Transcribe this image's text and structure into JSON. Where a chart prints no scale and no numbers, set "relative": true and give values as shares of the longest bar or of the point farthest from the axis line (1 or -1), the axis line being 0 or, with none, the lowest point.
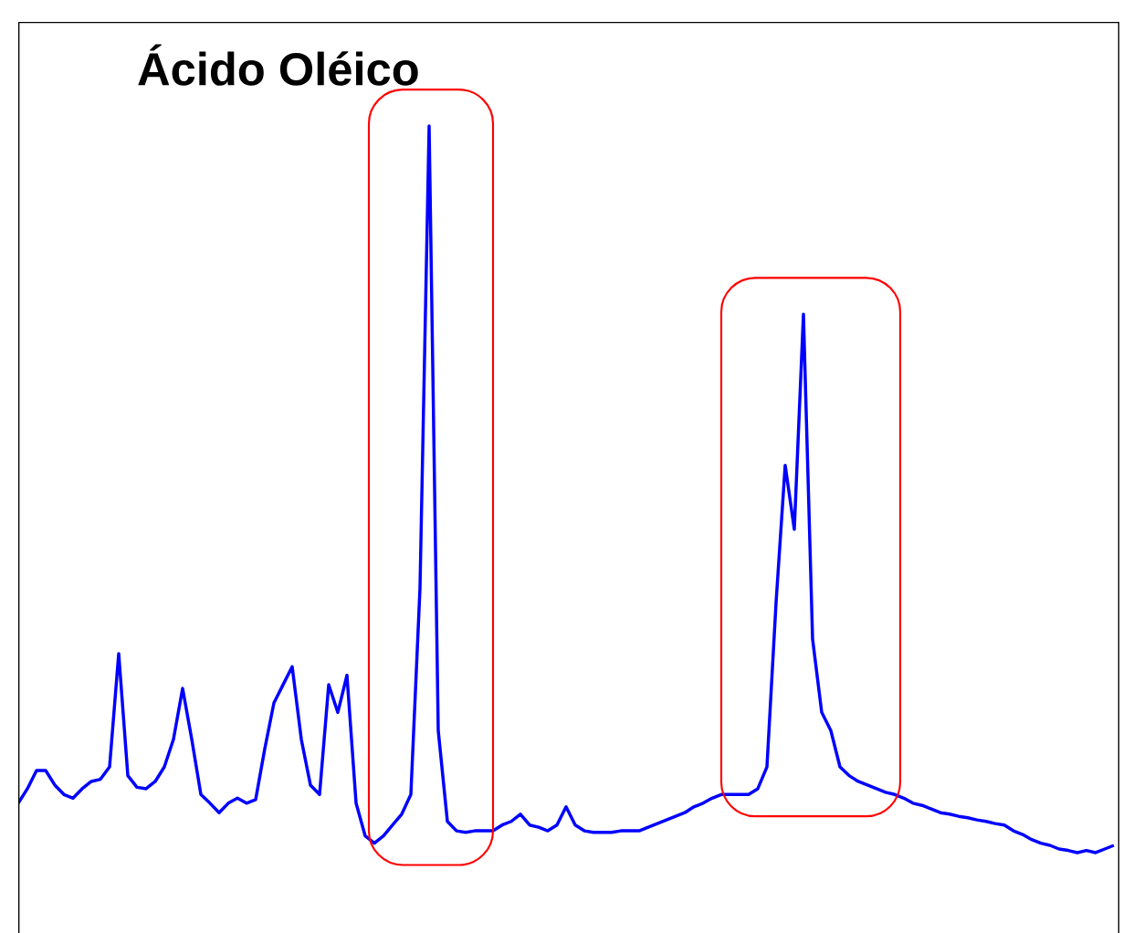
{
  "chart_data": {
    "type": "line",
    "title": "Ácido Oléico",
    "relative": true,
    "categories": [
      null,
      null,
      null,
      null,
      null,
      null,
      null,
      null,
      null,
      null,
      null,
      null,
      null,
      null,
      null,
      null,
      null,
      null,
      null,
      null,
      null,
      null,
      null,
      null,
      null,
      null,
      null,
      null,
      null,
      null,
      null,
      null,
      null,
      null,
      null,
      null,
      null,
      null,
      null,
      null,
      null,
      null,
      null,
      null,
      null,
      null,
      null,
      null,
      null,
      null,
      null,
      null,
      null,
      null,
      null,
      null,
      null,
      null,
      null,
      null,
      null,
      null,
      null,
      null,
      null,
      null,
      null,
      null,
      null,
      null,
      null,
      null,
      null,
      null,
      null,
      null,
      null,
      null,
      null,
      null,
      null,
      null,
      null,
      null,
      null,
      null,
      null,
      null,
      null,
      null,
      null,
      null,
      null,
      null,
      null,
      null,
      null,
      null,
      null,
      null,
      null,
      null,
      null,
      null,
      null,
      null,
      null,
      null,
      null,
      null,
      null,
      null,
      null,
      null,
      null,
      null,
      null,
      null,
      null,
      null,
      null
    ],
    "series": [
      {
        "color": "#0000ff",
        "values": [
          0.068,
          0.088,
          0.113,
          0.113,
          0.093,
          0.08,
          0.075,
          0.088,
          0.098,
          0.101,
          0.118,
          0.274,
          0.106,
          0.09,
          0.088,
          0.098,
          0.118,
          0.156,
          0.226,
          0.156,
          0.08,
          0.068,
          0.055,
          0.068,
          0.075,
          0.068,
          0.073,
          0.143,
          0.206,
          0.231,
          0.256,
          0.156,
          0.093,
          0.08,
          0.231,
          0.193,
          0.244,
          0.068,
          0.023,
          0.013,
          0.023,
          0.038,
          0.053,
          0.08,
          0.364,
          1.0,
          0.168,
          0.043,
          0.03,
          0.028,
          0.03,
          0.03,
          0.03,
          0.038,
          0.043,
          0.053,
          0.038,
          0.035,
          0.03,
          0.038,
          0.063,
          0.038,
          0.03,
          0.028,
          0.028,
          0.028,
          0.03,
          0.03,
          0.03,
          0.035,
          0.04,
          0.045,
          0.05,
          0.055,
          0.063,
          0.068,
          0.075,
          0.08,
          0.08,
          0.08,
          0.08,
          0.088,
          0.118,
          0.344,
          0.533,
          0.445,
          0.741,
          0.294,
          0.193,
          0.168,
          0.118,
          0.106,
          0.098,
          0.093,
          0.088,
          0.083,
          0.08,
          0.075,
          0.068,
          0.065,
          0.06,
          0.055,
          0.053,
          0.05,
          0.048,
          0.045,
          0.043,
          0.04,
          0.038,
          0.03,
          0.025,
          0.018,
          0.013,
          0.01,
          0.005,
          0.003,
          0.0,
          0.003,
          0.0,
          0.005,
          0.01
        ]
      }
    ]
  }
}
